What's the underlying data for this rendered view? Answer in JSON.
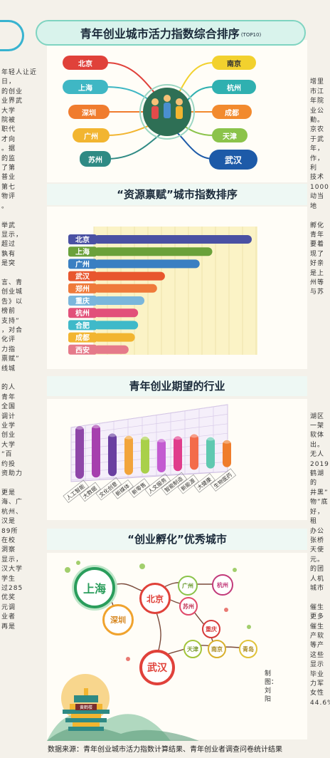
{
  "left_column": "年轻人让近日，\n的创业\n业界武\n大学\n院被\n职代\n才向\n。据\n的监\n了第\n普业\n第七\n物评\n。\n\n举武\n显示，\n超过\n孰有\n是突\n\n言、青\n创业城\n告》以\n榜前\n支持”\n，对合\n化评\n力指\n禀赋”\n线城\n\n的人\n青年\n全国\n调计\n业学\n创业\n大学\n“百\n约投\n资助力\n\n更是\n海、广\n杭州、\n汉是\n89所\n在校\n洞察\n显示，\n汉大学\n学生\n过285\n优奖\n元调\n业者\n再是",
  "right_column": "\n增里\n市江\n年院\n业公\n勤。\n京农\n于武\n年，\n作，利\n技术\n1000\n动当地\n\n孵化\n青年\n要着\n现了\n好亲\n是上\n州等\n与苏\n\n\n\n\n\n\n\n\n\n\n\n\n湖区\n一架\n软体\n出。\n无人\n2019\n鹤湖的\n井黑”\n物”底\n好，租\n办公\n张桥\n天使\n元。\n的团\n人机\n城市\n\n催生\n更多\n催生\n产软\n等产\n这些\n显示\n毕业\n力军\n女性\n44.6%",
  "sections": {
    "top10": {
      "title": "青年创业城市活力指数综合排序",
      "suffix": "(TOP10)",
      "left_cities": [
        {
          "name": "北京",
          "color": "#e0413a"
        },
        {
          "name": "上海",
          "color": "#3fb7c4"
        },
        {
          "name": "深圳",
          "color": "#f07c2e"
        },
        {
          "name": "广州",
          "color": "#f2b530"
        },
        {
          "name": "苏州",
          "color": "#2f8a84"
        }
      ],
      "right_cities": [
        {
          "name": "南京",
          "color": "#f2d12e"
        },
        {
          "name": "杭州",
          "color": "#2fb0b0"
        },
        {
          "name": "成都",
          "color": "#f28a2e"
        },
        {
          "name": "天津",
          "color": "#8bc34a"
        },
        {
          "name": "武汉",
          "color": "#1d5aa8"
        }
      ]
    },
    "resources": {
      "title": "“资源禀赋”城市指数排序",
      "chart_data": {
        "type": "bar",
        "orientation": "horizontal",
        "categories": [
          "北京",
          "上海",
          "广州",
          "武汉",
          "郑州",
          "重庆",
          "杭州",
          "合肥",
          "成都",
          "西安"
        ],
        "values": [
          100,
          75,
          67,
          45,
          40,
          32,
          28,
          28,
          26,
          22
        ],
        "colors": [
          "#4a51a3",
          "#6aa13a",
          "#3a7fc2",
          "#e8562e",
          "#ef7a3a",
          "#7ab6dc",
          "#e2507a",
          "#3fb9c9",
          "#f2b530",
          "#e57a8a"
        ]
      }
    },
    "industries": {
      "title": "青年创业期望的行业",
      "chart_data": {
        "type": "bar",
        "categories": [
          "人工智能",
          "大数据",
          "文化创意",
          "新媒体",
          "新零售",
          "人文服务",
          "智能制造",
          "新能源",
          "大健康",
          "生物医药"
        ],
        "values": [
          74,
          74,
          60,
          55,
          52,
          47,
          49,
          50,
          44,
          38
        ],
        "colors": [
          "#8e46a8",
          "#a63fae",
          "#6a3fa0",
          "#f2a43a",
          "#a9d04a",
          "#c35bd1",
          "#e03c8c",
          "#f36b4a",
          "#5fc9b0",
          "#ef7d2c"
        ]
      }
    },
    "incubation": {
      "title": "“创业孵化”优秀城市",
      "cities": [
        {
          "name": "上海",
          "color": "#2a9d5c"
        },
        {
          "name": "北京",
          "color": "#e0413a"
        },
        {
          "name": "深圳",
          "color": "#f0a32e"
        },
        {
          "name": "广州",
          "color": "#8bc34a"
        },
        {
          "name": "杭州",
          "color": "#c23a7a"
        },
        {
          "name": "苏州",
          "color": "#e04a6a"
        },
        {
          "name": "武汉",
          "color": "#e0413a"
        },
        {
          "name": "天津",
          "color": "#a3c43a"
        },
        {
          "name": "南京",
          "color": "#d8b02e"
        },
        {
          "name": "青岛",
          "color": "#e0c23a"
        },
        {
          "name": "西安",
          "color": "#d8c04a"
        },
        {
          "name": "成都",
          "color": "#c23a5a"
        },
        {
          "name": "重庆",
          "color": "#d63a3a"
        },
        {
          "name": "杭州2",
          "color": "#c23a7a"
        }
      ]
    }
  },
  "credit": "制图：刘阳",
  "tower_label": "黄鹤楼",
  "footer": "数据来源：青年创业城市活力指数计算结果、青年创业者调查问卷统计结果"
}
